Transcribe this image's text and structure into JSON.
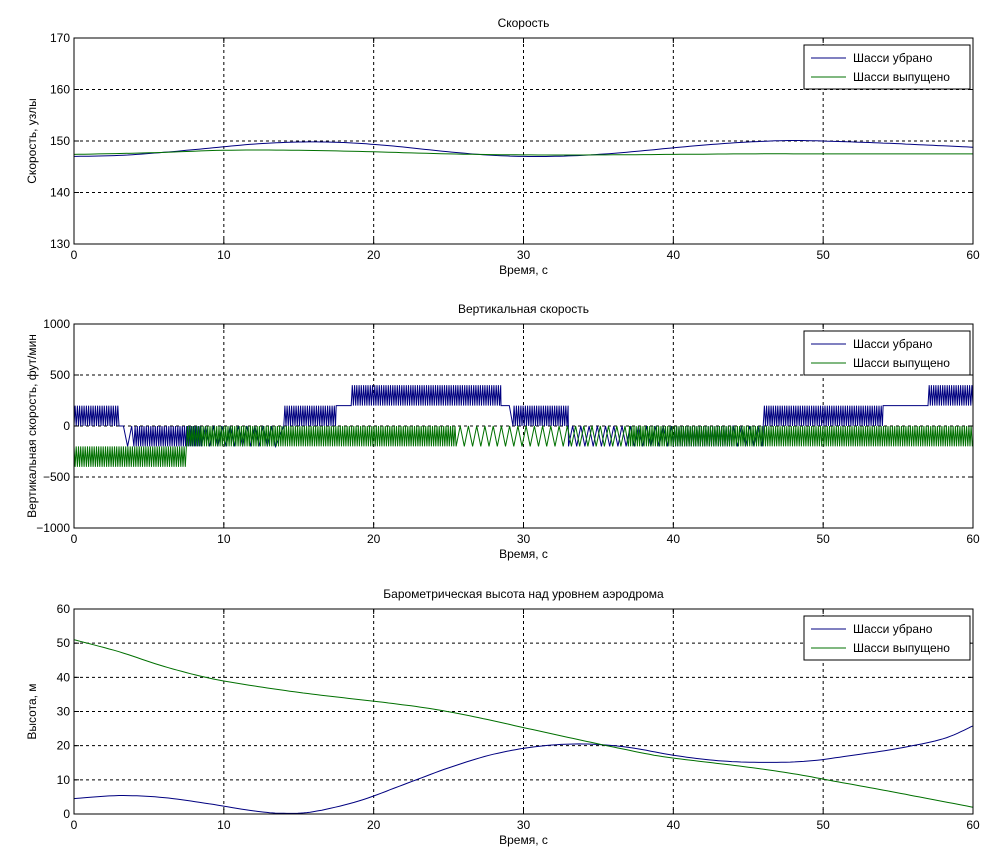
{
  "chart_data": [
    {
      "type": "line",
      "title": "Скорость",
      "xlabel": "Время, с",
      "ylabel": "Скорость, узлы",
      "xlim": [
        0,
        60
      ],
      "ylim": [
        130,
        170
      ],
      "xticks": [
        0,
        10,
        20,
        30,
        40,
        50,
        60
      ],
      "yticks": [
        130,
        140,
        150,
        160,
        170
      ],
      "grid": true,
      "legend_position": "top-right",
      "series": [
        {
          "name": "Шасси убрано",
          "color": "#000080",
          "x": [
            0,
            3,
            6,
            9,
            12,
            15,
            18,
            21,
            24,
            27,
            30,
            33,
            36,
            39,
            42,
            45,
            48,
            51,
            54,
            57,
            60
          ],
          "y": [
            147,
            147.2,
            147.8,
            148.6,
            149.4,
            149.8,
            149.7,
            149.1,
            148.2,
            147.4,
            147,
            147.1,
            147.6,
            148.4,
            149.2,
            149.8,
            150.1,
            149.9,
            149.6,
            149.2,
            148.8
          ]
        },
        {
          "name": "Шасси выпущено",
          "color": "#007000",
          "x": [
            0,
            5,
            10,
            15,
            20,
            25,
            30,
            35,
            40,
            45,
            50,
            55,
            60
          ],
          "y": [
            147.4,
            147.7,
            148.2,
            148.2,
            147.9,
            147.5,
            147.3,
            147.3,
            147.4,
            147.5,
            147.5,
            147.5,
            147.5
          ]
        }
      ]
    },
    {
      "type": "line",
      "title": "Вертикальная скорость",
      "xlabel": "Время, с",
      "ylabel": "Вертикальная скорость, фут/мин",
      "xlim": [
        0,
        60
      ],
      "ylim": [
        -1000,
        1000
      ],
      "xticks": [
        0,
        10,
        20,
        30,
        40,
        50,
        60
      ],
      "yticks": [
        -1000,
        -500,
        0,
        500,
        1000
      ],
      "grid": true,
      "legend_position": "top-right",
      "series": [
        {
          "name": "Шасси убрано",
          "color": "#000080",
          "segments": [
            {
              "x0": 0,
              "x1": 3,
              "base": 0,
              "alt": 200,
              "dense": true
            },
            {
              "x0": 3.3,
              "x1": 4,
              "base": 0,
              "alt": -200,
              "dense": false
            },
            {
              "x0": 4,
              "x1": 8.5,
              "base": -200,
              "alt": 0,
              "dense": true
            },
            {
              "x0": 8.5,
              "x1": 13.5,
              "base": -200,
              "alt": 0,
              "dense": false
            },
            {
              "x0": 14,
              "x1": 17.5,
              "base": 0,
              "alt": 200,
              "dense": true
            },
            {
              "x0": 17.5,
              "x1": 18.5,
              "base": 200,
              "alt": 200,
              "dense": false
            },
            {
              "x0": 18.5,
              "x1": 28.5,
              "base": 200,
              "alt": 400,
              "dense": true
            },
            {
              "x0": 28.5,
              "x1": 29.3,
              "base": 200,
              "alt": 200,
              "dense": false
            },
            {
              "x0": 29.3,
              "x1": 33,
              "base": 0,
              "alt": 200,
              "dense": true
            },
            {
              "x0": 33,
              "x1": 40,
              "base": -200,
              "alt": 0,
              "dense": false
            },
            {
              "x0": 40,
              "x1": 44,
              "base": -200,
              "alt": 0,
              "dense": true
            },
            {
              "x0": 44,
              "x1": 46,
              "base": 0,
              "alt": -200,
              "dense": false
            },
            {
              "x0": 46,
              "x1": 54,
              "base": 0,
              "alt": 200,
              "dense": true
            },
            {
              "x0": 54,
              "x1": 57,
              "base": 200,
              "alt": 200,
              "dense": false
            },
            {
              "x0": 57,
              "x1": 60,
              "base": 200,
              "alt": 400,
              "dense": true
            }
          ]
        },
        {
          "name": "Шасси выпущено",
          "color": "#007000",
          "segments": [
            {
              "x0": 0,
              "x1": 7.5,
              "base": -200,
              "alt": -400,
              "dense": true
            },
            {
              "x0": 7.5,
              "x1": 25.5,
              "base": -200,
              "alt": 0,
              "dense": true
            },
            {
              "x0": 25.5,
              "x1": 37,
              "base": -200,
              "alt": 0,
              "dense": false
            },
            {
              "x0": 37,
              "x1": 60,
              "base": -200,
              "alt": 0,
              "dense": true
            }
          ]
        }
      ]
    },
    {
      "type": "line",
      "title": "Барометрическая высота над уровнем аэродрома",
      "xlabel": "Время, с",
      "ylabel": "Высота, м",
      "xlim": [
        0,
        60
      ],
      "ylim": [
        0,
        60
      ],
      "xticks": [
        0,
        10,
        20,
        30,
        40,
        50,
        60
      ],
      "yticks": [
        0,
        10,
        20,
        30,
        40,
        50,
        60
      ],
      "grid": true,
      "legend_position": "top-right",
      "series": [
        {
          "name": "Шасси убрано",
          "color": "#000080",
          "x": [
            0,
            3,
            6,
            9,
            12,
            14,
            16,
            19,
            22,
            25,
            28,
            31,
            34,
            37,
            40,
            43,
            46,
            49,
            52,
            55,
            58,
            60
          ],
          "y": [
            4.5,
            5.4,
            4.8,
            3,
            0.9,
            0.2,
            0.7,
            3.8,
            8.6,
            13.5,
            17.5,
            19.8,
            20.5,
            19.5,
            17.2,
            15.6,
            15.1,
            15.5,
            17.2,
            19.2,
            22,
            25.8
          ]
        },
        {
          "name": "Шасси выпущено",
          "color": "#007000",
          "x": [
            0,
            3,
            6,
            9,
            12,
            15,
            18,
            21,
            24,
            27,
            30,
            33,
            36,
            39,
            42,
            45,
            48,
            51,
            54,
            57,
            60
          ],
          "y": [
            51,
            47.5,
            43.2,
            39.8,
            37.5,
            35.6,
            34,
            32.5,
            30.7,
            28.2,
            25.3,
            22.4,
            19.6,
            17,
            15.3,
            13.7,
            11.8,
            9.4,
            7,
            4.5,
            2
          ]
        }
      ]
    }
  ]
}
